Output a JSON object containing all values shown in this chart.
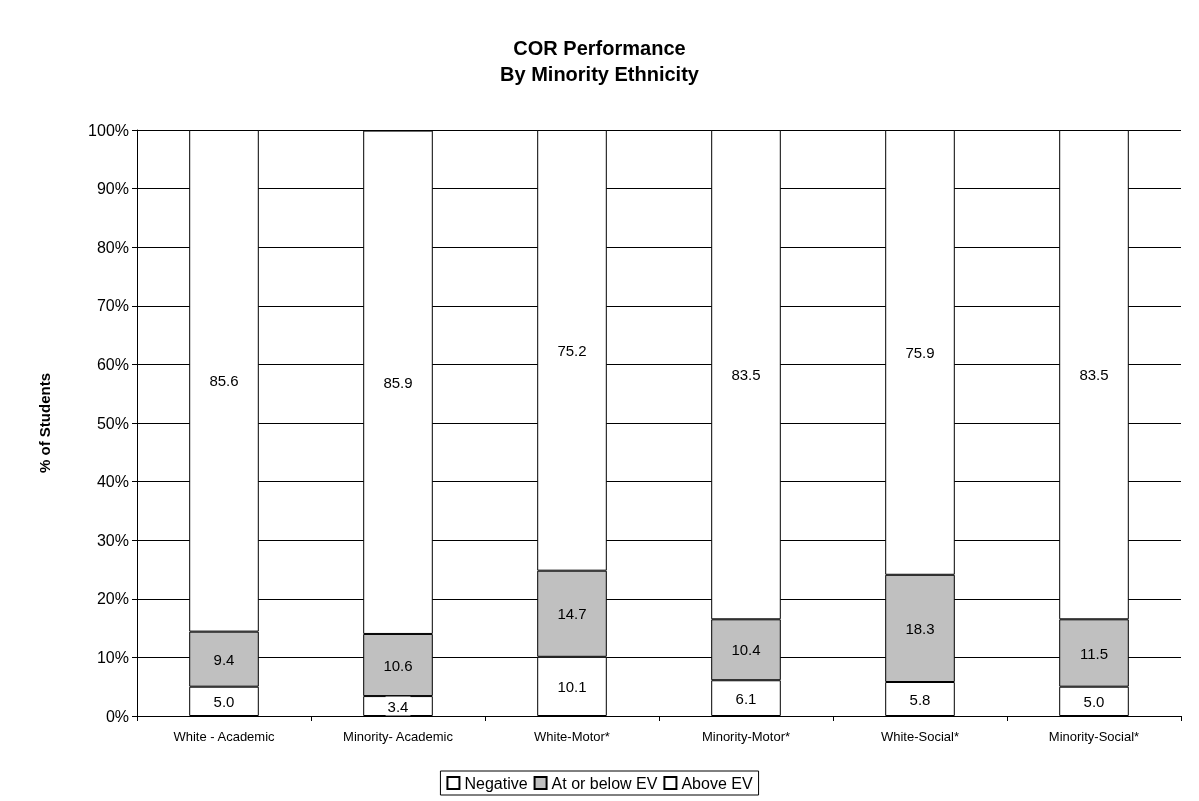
{
  "chart_data": {
    "type": "bar",
    "title": "COR Performance\nBy Minority Ethnicity",
    "ylabel": "% of Students",
    "categories": [
      "White - Academic",
      "Minority- Academic",
      "White-Motor*",
      "Minority-Motor*",
      "White-Social*",
      "Minority-Social*"
    ],
    "stacked": true,
    "series": [
      {
        "name": "Negative",
        "color": "#ffffff",
        "values": [
          5.0,
          3.4,
          10.1,
          6.1,
          5.8,
          5.0
        ],
        "value_labels": [
          "5.0",
          "3.4",
          "10.1",
          "6.1",
          "5.8",
          "5.0"
        ]
      },
      {
        "name": "At or below EV",
        "color": "#c0c0c0",
        "values": [
          9.4,
          10.6,
          14.7,
          10.4,
          18.3,
          11.5
        ],
        "value_labels": [
          "9.4",
          "10.6",
          "14.7",
          "10.4",
          "18.3",
          "11.5"
        ]
      },
      {
        "name": "Above EV",
        "color": "#ffffff",
        "values": [
          85.6,
          85.9,
          75.2,
          83.5,
          75.9,
          83.5
        ],
        "value_labels": [
          "85.6",
          "85.9",
          "75.2",
          "83.5",
          "75.9",
          "83.5"
        ]
      }
    ],
    "ylim": [
      0,
      100
    ],
    "yticks": [
      {
        "value": 0,
        "label": "0%"
      },
      {
        "value": 10,
        "label": "10%"
      },
      {
        "value": 20,
        "label": "20%"
      },
      {
        "value": 30,
        "label": "30%"
      },
      {
        "value": 40,
        "label": "40%"
      },
      {
        "value": 50,
        "label": "50%"
      },
      {
        "value": 60,
        "label": "60%"
      },
      {
        "value": 70,
        "label": "70%"
      },
      {
        "value": 80,
        "label": "80%"
      },
      {
        "value": 90,
        "label": "90%"
      },
      {
        "value": 100,
        "label": "100%"
      }
    ],
    "grid": "y",
    "legend": "bottom"
  }
}
